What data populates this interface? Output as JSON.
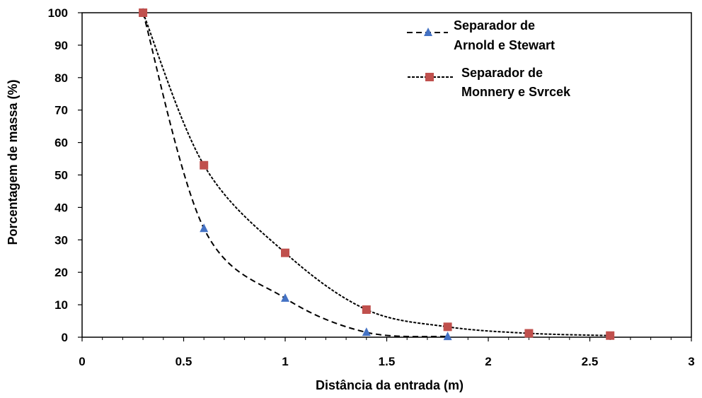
{
  "chart_data": {
    "type": "scatter",
    "xlabel": "Distância da entrada (m)",
    "ylabel": "Porcentagem de massa (%)",
    "xlim": [
      0,
      3
    ],
    "ylim": [
      0,
      100
    ],
    "x_ticks": [
      "0",
      "0.5",
      "1",
      "1.5",
      "2",
      "2.5",
      "3"
    ],
    "y_ticks": [
      "0",
      "10",
      "20",
      "30",
      "40",
      "50",
      "60",
      "70",
      "80",
      "90",
      "100"
    ],
    "grid": false,
    "legend_position": "top-right",
    "series": [
      {
        "name": "Separador de Arnold e Stewart",
        "name_lines": [
          "Separador de",
          "Arnold e Stewart"
        ],
        "marker": "triangle",
        "color": "#4472C4",
        "line_style": "dashed",
        "x": [
          0.3,
          0.6,
          1.0,
          1.4,
          1.8
        ],
        "y": [
          100,
          33.5,
          12,
          1.5,
          0.2
        ]
      },
      {
        "name": "Separador de Monnery e Svrcek",
        "name_lines": [
          "Separador de",
          "Monnery e Svrcek"
        ],
        "marker": "square",
        "color": "#C0504D",
        "line_style": "dotted",
        "x": [
          0.3,
          0.6,
          1.0,
          1.4,
          1.8,
          2.2,
          2.6
        ],
        "y": [
          100,
          53,
          26,
          8.5,
          3.2,
          1.2,
          0.5
        ]
      }
    ]
  }
}
